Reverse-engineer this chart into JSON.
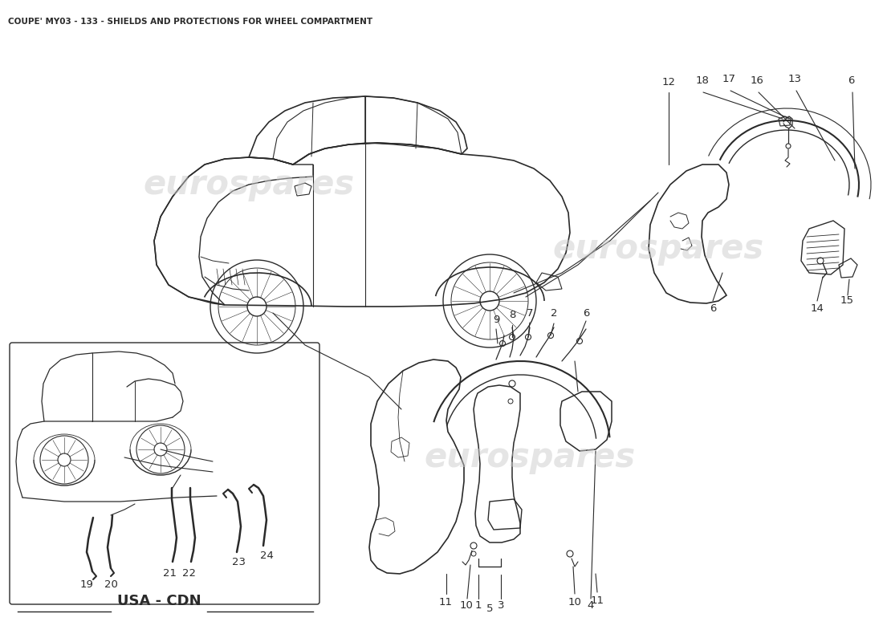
{
  "title": "COUPE' MY03 - 133 - SHIELDS AND PROTECTIONS FOR WHEEL COMPARTMENT",
  "bg_color": "#ffffff",
  "line_color": "#2a2a2a",
  "watermark_text": "eurospares",
  "watermark_color": "#cccccc",
  "usa_cdn_label": "USA - CDN",
  "fig_width": 11.0,
  "fig_height": 8.0,
  "dpi": 100,
  "title_fontsize": 7.5,
  "label_fontsize": 9.5
}
